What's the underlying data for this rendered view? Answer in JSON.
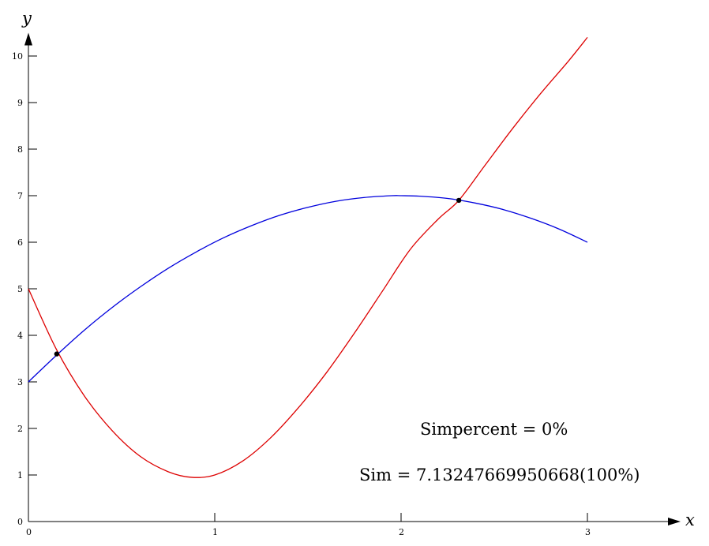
{
  "chart_data": {
    "type": "line",
    "xlabel": "x",
    "ylabel": "y",
    "xlim": [
      0,
      3.5
    ],
    "ylim": [
      0,
      10.5
    ],
    "x_ticks": [
      0,
      1,
      2,
      3
    ],
    "y_ticks": [
      0,
      1,
      2,
      3,
      4,
      5,
      6,
      7,
      8,
      9,
      10
    ],
    "grid": false,
    "series": [
      {
        "color": "#dd0000",
        "x": [
          0,
          0.15,
          0.3,
          0.45,
          0.6,
          0.75,
          0.875,
          1.0,
          1.15,
          1.3,
          1.45,
          1.6,
          1.75,
          1.9,
          2.05,
          2.2,
          2.31,
          2.45,
          2.6,
          2.75,
          2.9,
          3.0
        ],
        "y": [
          5.0,
          3.7,
          2.7,
          1.95,
          1.4,
          1.07,
          0.95,
          1.0,
          1.3,
          1.8,
          2.45,
          3.2,
          4.05,
          4.95,
          5.85,
          6.5,
          6.9,
          7.65,
          8.45,
          9.2,
          9.9,
          10.4
        ]
      },
      {
        "color": "#0000dd",
        "x": [
          0,
          0.15,
          0.3,
          0.45,
          0.6,
          0.75,
          0.9,
          1.05,
          1.2,
          1.35,
          1.5,
          1.65,
          1.8,
          1.95,
          2.0,
          2.1,
          2.25,
          2.4,
          2.55,
          2.7,
          2.85,
          3.0
        ],
        "y": [
          3.0,
          3.57,
          4.11,
          4.6,
          5.04,
          5.44,
          5.79,
          6.1,
          6.36,
          6.58,
          6.75,
          6.88,
          6.96,
          7.0,
          7.0,
          6.99,
          6.94,
          6.84,
          6.7,
          6.51,
          6.28,
          6.0
        ]
      }
    ],
    "intersections": [
      {
        "x": 0.152,
        "y": 3.6
      },
      {
        "x": 2.31,
        "y": 6.9
      }
    ],
    "annotations": {
      "simpercent": "Simpercent = 0%",
      "sim": "Sim = 7.13247669950668(100%)"
    }
  }
}
